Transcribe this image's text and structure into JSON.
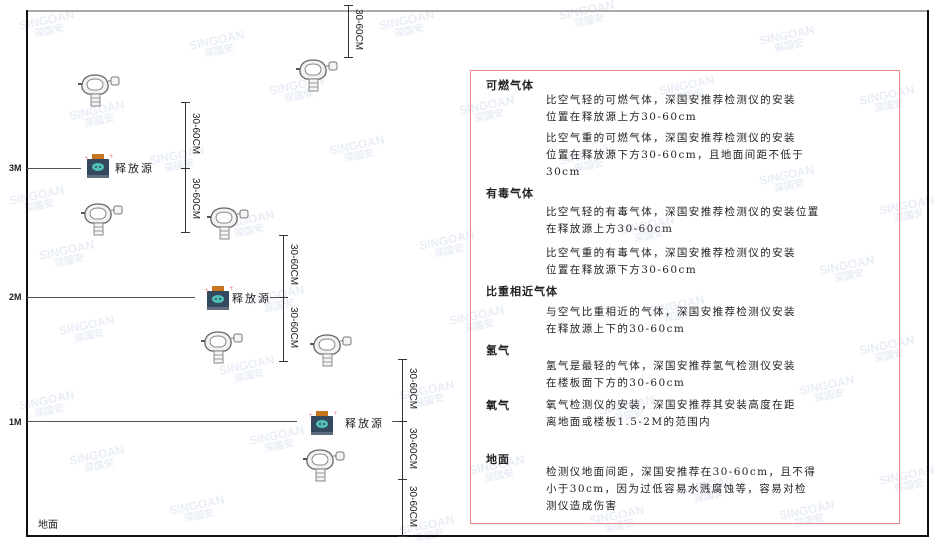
{
  "watermark": {
    "brand": "SINGOAN",
    "cn": "深国安"
  },
  "levels": [
    {
      "label": "3M"
    },
    {
      "label": "2M"
    },
    {
      "label": "1M"
    }
  ],
  "ground_label": "地面",
  "source_label": "释放源",
  "dimension_label": "30-60CM",
  "legend": {
    "sections": [
      {
        "heading": "可燃气体",
        "paragraphs": [
          [
            "比空气轻的可燃气体，深国安推荐检测仪的安装",
            "位置在释放源上方30-60cm"
          ],
          [
            "比空气重的可燃气体，深国安推荐检测仪的安装",
            "位置在释放源下方30-60cm，且地面间距不低于",
            "30cm"
          ]
        ]
      },
      {
        "heading": "有毒气体",
        "paragraphs": [
          [
            "比空气轻的有毒气体，深国安推荐检测仪的安装位置",
            "在释放源上方30-60cm"
          ],
          [
            "比空气重的有毒气体，深国安推荐检测仪的安装",
            "位置在释放源下方30-60cm"
          ]
        ]
      },
      {
        "heading": "比重相近气体",
        "paragraphs": [
          [
            "与空气比重相近的气体，深国安推荐检测仪安装",
            "在释放源上下的30-60cm"
          ]
        ]
      },
      {
        "heading": "氢气",
        "paragraphs": [
          [
            "氢气是最轻的气体，深国安推荐氢气检测仪安装",
            "在楼板面下方的30-60cm"
          ]
        ]
      },
      {
        "heading": "氧气",
        "paragraphs": [
          [
            "氧气检测仪的安装，深国安推荐其安装高度在距",
            "离地面或楼板1.5-2M的范围内"
          ]
        ]
      },
      {
        "heading": "地面",
        "paragraphs": [
          [
            "检测仪地面间距，深国安推荐在30-60cm，且不得",
            "小于30cm，因为过低容易水溅腐蚀等，容易对检",
            "测仪造成伤害"
          ]
        ]
      }
    ]
  },
  "colors": {
    "box_border": "#e88a8a",
    "source_body": "#34495e",
    "source_face": "#4fc1b5",
    "source_top": "#c8741f"
  }
}
